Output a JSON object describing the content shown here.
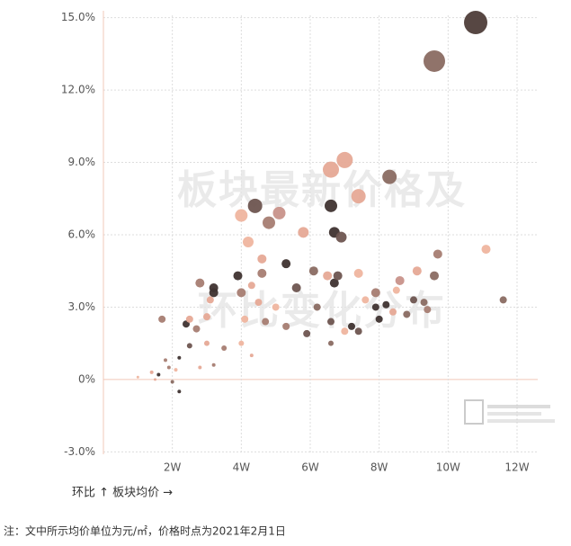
{
  "chart_data": {
    "type": "scatter",
    "watermark": [
      "板块最新价格及",
      "环比变化分布"
    ],
    "axis_note": "环比 ↑  板块均价 →",
    "footnote": "注：文中所示均价单位为元/㎡，价格时点为2021年2月1日",
    "xlim": [
      0,
      12.6
    ],
    "ylim": [
      -3.1,
      15.1
    ],
    "xticks": [
      {
        "value": 2,
        "label": "2W"
      },
      {
        "value": 4,
        "label": "4W"
      },
      {
        "value": 6,
        "label": "6W"
      },
      {
        "value": 8,
        "label": "8W"
      },
      {
        "value": 10,
        "label": "10W"
      },
      {
        "value": 12,
        "label": "12W"
      }
    ],
    "yticks": [
      {
        "value": -3,
        "label": "-3.0%"
      },
      {
        "value": 0,
        "label": "0%"
      },
      {
        "value": 3,
        "label": "3.0%"
      },
      {
        "value": 6,
        "label": "6.0%"
      },
      {
        "value": 9,
        "label": "9.0%"
      },
      {
        "value": 12,
        "label": "12.0%"
      },
      {
        "value": 15,
        "label": "15.0%"
      }
    ],
    "grid": true,
    "x": [
      10.8,
      9.6,
      7.0,
      6.6,
      8.3,
      7.4,
      4.4,
      6.6,
      4.0,
      5.1,
      4.8,
      5.8,
      6.7,
      6.9,
      4.2,
      9.7,
      11.1,
      4.6,
      3.9,
      5.3,
      6.1,
      4.6,
      7.4,
      9.1,
      9.6,
      2.8,
      3.2,
      3.2,
      4.0,
      4.3,
      6.5,
      6.7,
      6.8,
      8.6,
      8.5,
      7.9,
      7.6,
      5.6,
      5.0,
      6.2,
      11.6,
      9.3,
      9.0,
      8.2,
      7.9,
      8.4,
      8.8,
      9.4,
      3.1,
      4.5,
      1.7,
      2.4,
      2.5,
      2.7,
      3.0,
      4.1,
      4.7,
      5.3,
      5.9,
      6.6,
      7.2,
      7.4,
      7.0,
      8.0,
      2.5,
      3.0,
      4.0,
      3.5,
      6.6,
      2.2,
      1.9,
      1.6,
      1.4,
      1.0,
      1.8,
      2.2,
      2.0,
      1.5,
      2.8,
      3.2,
      4.3,
      2.1
    ],
    "values": [
      14.8,
      13.2,
      9.1,
      8.7,
      8.4,
      7.6,
      7.2,
      7.2,
      6.8,
      6.9,
      6.5,
      6.1,
      6.1,
      5.9,
      5.7,
      5.2,
      5.4,
      5.0,
      4.3,
      4.8,
      4.5,
      4.4,
      4.4,
      4.5,
      4.3,
      4.0,
      3.8,
      3.6,
      3.6,
      3.9,
      4.3,
      4.0,
      4.3,
      4.1,
      3.7,
      3.6,
      3.3,
      3.8,
      3.0,
      3.0,
      3.3,
      3.2,
      3.3,
      3.1,
      3.0,
      2.8,
      2.7,
      2.9,
      3.3,
      3.2,
      2.5,
      2.3,
      2.5,
      2.1,
      2.6,
      2.5,
      2.4,
      2.2,
      1.9,
      2.4,
      2.2,
      2.0,
      2.0,
      2.5,
      1.4,
      1.5,
      1.5,
      1.3,
      1.5,
      0.9,
      0.5,
      0.2,
      0.3,
      0.1,
      0.8,
      -0.5,
      -0.1,
      0.0,
      0.5,
      0.6,
      1.0,
      0.4
    ],
    "sizes": [
      13,
      12,
      9,
      9,
      8,
      8,
      8,
      7,
      7,
      7,
      7,
      6,
      6,
      6,
      6,
      5,
      5,
      5,
      5,
      5,
      5,
      5,
      5,
      5,
      5,
      5,
      5,
      5,
      5,
      4,
      5,
      5,
      5,
      5,
      4,
      5,
      4,
      5,
      4,
      4,
      4,
      4,
      4,
      4,
      4,
      4,
      4,
      4,
      4,
      4,
      4,
      4,
      4,
      4,
      4,
      4,
      4,
      4,
      4,
      4,
      4,
      4,
      4,
      4,
      3,
      3,
      3,
      3,
      3,
      2,
      2,
      2,
      2,
      1.5,
      2,
      2,
      2,
      1.5,
      2,
      2,
      2,
      2
    ],
    "colors": [
      "#4e3d39",
      "#8a6b62",
      "#e6a996",
      "#e6a996",
      "#8a6b62",
      "#e6a996",
      "#6e5550",
      "#3f3330",
      "#efb59f",
      "#c8928a",
      "#a67d72",
      "#e6a996",
      "#3f3330",
      "#6e5550",
      "#efb59f",
      "#a67d72",
      "#efb59f",
      "#e6a996",
      "#3f3330",
      "#3f3330",
      "#8a6b62",
      "#a67d72",
      "#efb59f",
      "#e6a996",
      "#8a6b62",
      "#a67d72",
      "#3f3330",
      "#3f3330",
      "#a67d72",
      "#e6a996",
      "#e6a996",
      "#3f3330",
      "#6e5550",
      "#c8928a",
      "#efb59f",
      "#a67d72",
      "#efb59f",
      "#6e5550",
      "#efb59f",
      "#8a6b62",
      "#8a6b62",
      "#8a6b62",
      "#6e5550",
      "#3f3330",
      "#3f3330",
      "#e6a996",
      "#8a6b62",
      "#a67d72",
      "#e6a996",
      "#e6a996",
      "#a67d72",
      "#3f3330",
      "#e6a996",
      "#a67d72",
      "#e6a996",
      "#efb59f",
      "#a67d72",
      "#a67d72",
      "#6e5550",
      "#6e5550",
      "#3f3330",
      "#6e5550",
      "#efb59f",
      "#3f3330",
      "#6e5550",
      "#e6a996",
      "#efb59f",
      "#a67d72",
      "#8a6b62",
      "#3f3330",
      "#a67d72",
      "#3f3330",
      "#e6a996",
      "#efb59f",
      "#a67d72",
      "#3f3330",
      "#8a6b62",
      "#e6a996",
      "#e6a996",
      "#a67d72",
      "#e6a996",
      "#efb59f"
    ]
  }
}
